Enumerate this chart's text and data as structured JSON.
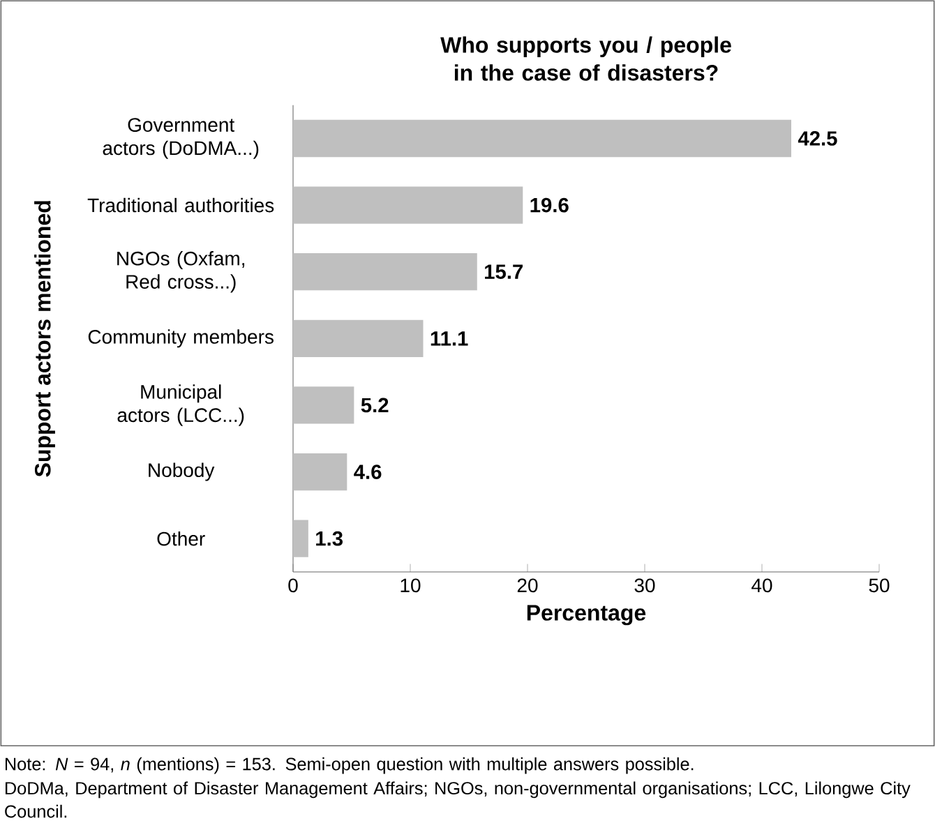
{
  "chart_data": {
    "type": "bar",
    "orientation": "horizontal",
    "title": "Who supports you / people in the case of disasters?",
    "categories": [
      "Government actors (DoDMA...)",
      "Traditional authorities",
      "NGOs (Oxfam, Red cross...)",
      "Community members",
      "Municipal actors (LCC...)",
      "Nobody",
      "Other"
    ],
    "values": [
      42.5,
      19.6,
      15.7,
      11.1,
      5.2,
      4.6,
      1.3
    ],
    "color": "#bfbfbf",
    "xlim": [
      0,
      50
    ],
    "xticks": [
      0,
      10,
      20,
      30,
      40,
      50
    ],
    "data_labels": true,
    "xlabel": "Percentage",
    "ylabel": "Support actors mentioned",
    "annotations": [
      "Note: *N* = 94, *n* (mentions) = 153. Semi-open question with multiple answers possible.",
      "DoDMa, Department of Disaster Management Affairs; NGOs, non-governmental organisations; LCC, Lilongwe City Council."
    ]
  }
}
